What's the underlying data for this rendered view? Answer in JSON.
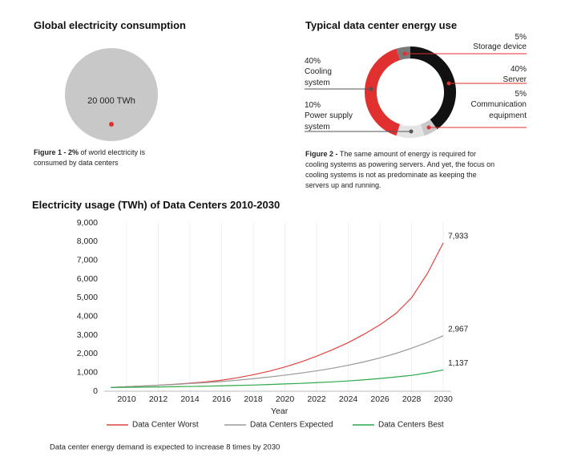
{
  "chart_data": [
    {
      "type": "circle",
      "title": "Global electricity consumption",
      "values": [
        20000
      ],
      "value_labels": [
        "20 000 TWh"
      ],
      "color": "#c8c8c8",
      "highlight_color": "#e03030",
      "caption_bold": "Figure 1 - 2%",
      "caption": "of world electricity is consumed by data centers"
    },
    {
      "type": "donut",
      "title": "Typical data center energy use",
      "categories": [
        "Storage device",
        "Server",
        "Communication equipment",
        "Power supply system",
        "Cooling system"
      ],
      "values": [
        5,
        40,
        5,
        10,
        40
      ],
      "value_labels": [
        "5%",
        "40%",
        "5%",
        "10%",
        "40%"
      ],
      "colors": [
        "#7a7a7a",
        "#111111",
        "#c9c9c9",
        "#e4e4e4",
        "#e03030"
      ],
      "caption_bold": "Figure 2 -",
      "caption": "The same amount of energy is required for cooling systems as powering servers.  And yet, the focus on cooling systems is not as predominate as keeping the servers up and running."
    },
    {
      "type": "line",
      "title": "Electricity usage (TWh) of Data Centers 2010-2030",
      "x": [
        2009,
        2010,
        2011,
        2012,
        2013,
        2014,
        2015,
        2016,
        2017,
        2018,
        2019,
        2020,
        2021,
        2022,
        2023,
        2024,
        2025,
        2026,
        2027,
        2028,
        2029,
        2030
      ],
      "xlim": [
        2009,
        2030.5
      ],
      "xticks": [
        2010,
        2012,
        2014,
        2016,
        2018,
        2020,
        2022,
        2024,
        2026,
        2028,
        2030
      ],
      "ylim": [
        0,
        9000
      ],
      "yticks": [
        0,
        {
          "value": 1000,
          "label": "1,000"
        },
        {
          "value": 2000,
          "label": "2,000"
        },
        {
          "value": 3000,
          "label": "3,000"
        },
        {
          "value": 4000,
          "label": "4,000"
        },
        {
          "value": 5000,
          "label": "5,000"
        },
        {
          "value": 6000,
          "label": "6,000"
        },
        {
          "value": 7000,
          "label": "7,000"
        },
        {
          "value": 8000,
          "label": "8,000"
        },
        {
          "value": 9000,
          "label": "9,000"
        }
      ],
      "xlabel": "Year",
      "grid": true,
      "series": [
        {
          "name": "Data Center Worst",
          "color": "#e2433f",
          "values": [
            200,
            240,
            280,
            320,
            370,
            430,
            500,
            590,
            720,
            880,
            1070,
            1300,
            1560,
            1870,
            2220,
            2600,
            3050,
            3550,
            4150,
            5000,
            6300,
            7933
          ],
          "value_labels": [
            null,
            null,
            null,
            null,
            null,
            null,
            null,
            null,
            null,
            null,
            null,
            null,
            null,
            null,
            null,
            null,
            null,
            null,
            null,
            null,
            null,
            "7,933"
          ]
        },
        {
          "name": "Data Centers Expected",
          "color": "#9a9a9a",
          "values": [
            200,
            240,
            280,
            320,
            360,
            410,
            460,
            520,
            590,
            670,
            760,
            860,
            970,
            1090,
            1230,
            1390,
            1570,
            1780,
            2020,
            2300,
            2610,
            2967
          ],
          "value_labels": [
            null,
            null,
            null,
            null,
            null,
            null,
            null,
            null,
            null,
            null,
            null,
            null,
            null,
            null,
            null,
            null,
            null,
            null,
            null,
            null,
            null,
            "2,967"
          ]
        },
        {
          "name": "Data Centers Best",
          "color": "#2ea84a",
          "values": [
            200,
            210,
            220,
            230,
            240,
            255,
            270,
            290,
            310,
            330,
            360,
            390,
            420,
            460,
            500,
            550,
            610,
            680,
            760,
            850,
            980,
            1137
          ],
          "value_labels": [
            null,
            null,
            null,
            null,
            null,
            null,
            null,
            null,
            null,
            null,
            null,
            null,
            null,
            null,
            null,
            null,
            null,
            null,
            null,
            null,
            null,
            "1,137"
          ]
        }
      ],
      "note": "Data center energy demand is expected to increase 8 times by 2030"
    }
  ]
}
